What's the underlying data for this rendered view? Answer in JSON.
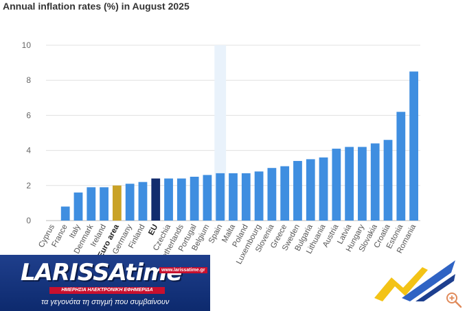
{
  "chart_data": {
    "type": "bar",
    "title": "Annual inflation rates (%) in August 2025",
    "xlabel": "",
    "ylabel": "",
    "ylim": [
      0,
      10
    ],
    "yticks": [
      0,
      2,
      4,
      6,
      8,
      10
    ],
    "grid": true,
    "highlighted_category": "Spain",
    "categories": [
      "Cyprus",
      "France",
      "Italy",
      "Denmark",
      "Ireland",
      "Euro area",
      "Germany",
      "Finland",
      "EU",
      "Czechia",
      "Netherlands",
      "Portugal",
      "Belgium",
      "Spain",
      "Malta",
      "Poland",
      "Luxembourg",
      "Slovenia",
      "Greece",
      "Sweden",
      "Bulgaria",
      "Lithuania",
      "Austria",
      "Latvia",
      "Hungary",
      "Slovakia",
      "Croatia",
      "Estonia",
      "Romania"
    ],
    "bold_categories": [
      "Euro area",
      "EU"
    ],
    "values": [
      0.0,
      0.8,
      1.6,
      1.9,
      1.9,
      2.0,
      2.1,
      2.2,
      2.4,
      2.4,
      2.4,
      2.5,
      2.6,
      2.7,
      2.7,
      2.7,
      2.8,
      3.0,
      3.1,
      3.4,
      3.5,
      3.6,
      4.1,
      4.2,
      4.2,
      4.4,
      4.6,
      6.2,
      8.5
    ],
    "colors": {
      "default": "#3f8ee0",
      "euro_area": "#c9a227",
      "eu": "#122c6e",
      "spain_highlight": "#e9f2fb",
      "grid": "#e0e0e0"
    }
  },
  "watermark": {
    "brand": "LARISSA",
    "brand_suffix": "time",
    "url": "www.larissatime.gr",
    "tagline": "ΗΜΕΡΗΣΙΑ ΗΛΕΚΤΡΟΝΙΚΗ ΕΦΗΜΕΡΙΔΑ",
    "slogan": "τα γεγονότα τη στιγμή που συμβαίνουν"
  },
  "icons": {
    "zoom": "zoom-in-icon",
    "brand_mark": "brand-mark-icon"
  }
}
